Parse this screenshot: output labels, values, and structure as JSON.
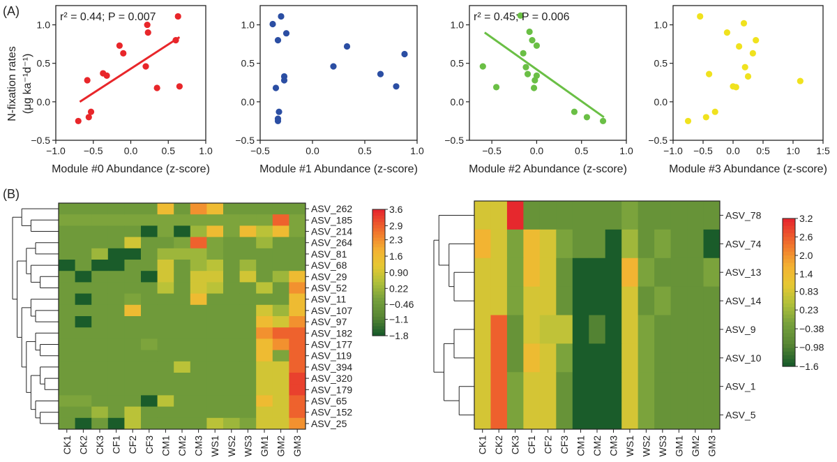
{
  "panel_a_label": "(A)",
  "panel_b_label": "(B)",
  "ylabel_line1": "N-fixation rates",
  "ylabel_line2": "(μg ka⁻¹d⁻¹)",
  "chart_data": [
    {
      "type": "scatter",
      "name": "module0",
      "xlabel": "Module #0 Abundance (z-score)",
      "annotation": "r² = 0.44; P = 0.007",
      "color": "#e8262a",
      "xlim": [
        -1.0,
        1.0
      ],
      "ylim": [
        -0.5,
        1.25
      ],
      "xticks": [
        -1.0,
        -0.5,
        0.0,
        0.5,
        1.0
      ],
      "xtick_labels": [
        "−1.0",
        "−0.5",
        "0.0",
        "0.5",
        "1.0"
      ],
      "yticks": [
        -0.5,
        0.0,
        0.5,
        1.0
      ],
      "ytick_labels": [
        "−0.5",
        "0.0",
        "0.5",
        "1.0"
      ],
      "fit": [
        [
          -0.68,
          0.0
        ],
        [
          0.65,
          0.84
        ]
      ],
      "points": [
        [
          -0.7,
          -0.25
        ],
        [
          -0.56,
          -0.2
        ],
        [
          -0.53,
          -0.13
        ],
        [
          -0.58,
          0.28
        ],
        [
          -0.37,
          0.37
        ],
        [
          -0.32,
          0.34
        ],
        [
          -0.15,
          0.73
        ],
        [
          -0.1,
          0.63
        ],
        [
          0.2,
          0.46
        ],
        [
          0.23,
          0.9
        ],
        [
          0.22,
          1.0
        ],
        [
          0.35,
          0.18
        ],
        [
          0.6,
          0.8
        ],
        [
          0.63,
          1.11
        ],
        [
          0.65,
          0.2
        ]
      ]
    },
    {
      "type": "scatter",
      "name": "module1",
      "xlabel": "Module #1 Abundance (z-score)",
      "annotation": "",
      "color": "#2b4ea3",
      "xlim": [
        -0.5,
        1.0
      ],
      "ylim": [
        -0.5,
        1.25
      ],
      "xticks": [
        -0.5,
        0.0,
        0.5,
        1.0
      ],
      "xtick_labels": [
        "−0.5",
        "0.0",
        "0.5",
        "1.0"
      ],
      "yticks": [
        -0.5,
        0.0,
        0.5,
        1.0
      ],
      "ytick_labels": [
        "−0.5",
        "0.0",
        "0.5",
        "1.0"
      ],
      "fit": null,
      "points": [
        [
          -0.38,
          1.01
        ],
        [
          -0.3,
          1.11
        ],
        [
          -0.25,
          0.89
        ],
        [
          -0.33,
          0.8
        ],
        [
          -0.27,
          0.33
        ],
        [
          -0.27,
          0.28
        ],
        [
          -0.35,
          0.18
        ],
        [
          -0.32,
          -0.13
        ],
        [
          -0.33,
          -0.22
        ],
        [
          -0.33,
          -0.25
        ],
        [
          0.2,
          0.46
        ],
        [
          0.33,
          0.72
        ],
        [
          0.65,
          0.36
        ],
        [
          0.8,
          0.2
        ],
        [
          0.88,
          0.62
        ]
      ]
    },
    {
      "type": "scatter",
      "name": "module2",
      "xlabel": "Module #2 Abundance (z-score)",
      "annotation": "r² = 0.45; P = 0.006",
      "color": "#6abf45",
      "xlim": [
        -0.75,
        1.0
      ],
      "ylim": [
        -0.5,
        1.25
      ],
      "xticks": [
        -0.5,
        0.0,
        0.5,
        1.0
      ],
      "xtick_labels": [
        "−0.5",
        "0.0",
        "0.5",
        "1.0"
      ],
      "yticks": [
        -0.5,
        0.0,
        0.5,
        1.0
      ],
      "ytick_labels": [
        "−0.5",
        "0.0",
        "0.5",
        "1.0"
      ],
      "fit": [
        [
          -0.58,
          0.9
        ],
        [
          0.75,
          -0.2
        ]
      ],
      "points": [
        [
          -0.18,
          1.12
        ],
        [
          -0.08,
          0.91
        ],
        [
          -0.15,
          0.63
        ],
        [
          -0.05,
          0.8
        ],
        [
          0.0,
          0.73
        ],
        [
          -0.6,
          0.46
        ],
        [
          -0.1,
          0.36
        ],
        [
          0.0,
          0.34
        ],
        [
          -0.02,
          0.28
        ],
        [
          -0.03,
          0.18
        ],
        [
          -0.45,
          0.19
        ],
        [
          0.42,
          -0.13
        ],
        [
          0.56,
          -0.2
        ],
        [
          0.74,
          -0.25
        ],
        [
          -0.12,
          0.45
        ]
      ]
    },
    {
      "type": "scatter",
      "name": "module3",
      "xlabel": "Module #3 Abundance (z-score)",
      "annotation": "",
      "color": "#f0e21e",
      "xlim": [
        -1.0,
        1.5
      ],
      "ylim": [
        -0.5,
        1.25
      ],
      "xticks": [
        -1.0,
        -0.5,
        0.0,
        0.5,
        1.0,
        1.5
      ],
      "xtick_labels": [
        "−1.0",
        "−0.5",
        "0.0",
        "0:5",
        "1:0",
        "1:5"
      ],
      "yticks": [
        -0.5,
        0.0,
        0.5,
        1.0
      ],
      "ytick_labels": [
        "−0.5",
        "0.0",
        "0.5",
        "1.0"
      ],
      "fit": null,
      "points": [
        [
          -0.55,
          1.11
        ],
        [
          -0.1,
          0.9
        ],
        [
          0.18,
          1.02
        ],
        [
          0.38,
          0.8
        ],
        [
          0.1,
          0.72
        ],
        [
          0.33,
          0.63
        ],
        [
          0.2,
          0.45
        ],
        [
          -0.4,
          0.36
        ],
        [
          0.25,
          0.33
        ],
        [
          0.0,
          0.2
        ],
        [
          0.05,
          0.19
        ],
        [
          -0.3,
          -0.13
        ],
        [
          -0.45,
          -0.2
        ],
        [
          -0.75,
          -0.25
        ],
        [
          1.12,
          0.27
        ]
      ]
    },
    {
      "type": "heatmap",
      "name": "heatmap_left",
      "columns": [
        "CK1",
        "CK2",
        "CK3",
        "CF1",
        "CF2",
        "CF3",
        "CM1",
        "CM2",
        "CM3",
        "WS1",
        "WS2",
        "WS3",
        "GM1",
        "GM2",
        "GM3"
      ],
      "rows": [
        "ASV_262",
        "ASV_185",
        "ASV_214",
        "ASV_264",
        "ASV_81",
        "ASV_68",
        "ASV_29",
        "ASV_52",
        "ASV_11",
        "ASV_107",
        "ASV_97",
        "ASV_182",
        "ASV_177",
        "ASV_119",
        "ASV_394",
        "ASV_320",
        "ASV_179",
        "ASV_65",
        "ASV_152",
        "ASV_25"
      ],
      "values": [
        [
          -0.46,
          -0.46,
          -0.46,
          -0.46,
          -0.46,
          -0.46,
          1.6,
          -0.46,
          2.3,
          1.6,
          -0.46,
          -0.46,
          -0.46,
          -0.46,
          -0.46
        ],
        [
          -0.2,
          -0.2,
          -0.2,
          -0.2,
          -0.2,
          -0.2,
          -0.2,
          -0.2,
          -0.2,
          -0.2,
          -0.2,
          -0.2,
          -0.2,
          2.9,
          -0.2
        ],
        [
          -0.46,
          -0.46,
          -0.46,
          -0.46,
          -0.46,
          -1.8,
          -0.2,
          -1.8,
          0.22,
          1.6,
          -0.2,
          1.6,
          0.6,
          1.6,
          -0.2
        ],
        [
          -0.46,
          -0.46,
          -0.46,
          -0.46,
          0.9,
          -0.46,
          -0.46,
          -0.2,
          2.9,
          -0.2,
          -0.46,
          -0.46,
          0.22,
          -0.46,
          -0.46
        ],
        [
          -0.46,
          -0.46,
          0.22,
          -1.8,
          -1.8,
          -0.46,
          0.22,
          0.22,
          0.22,
          -0.2,
          -0.46,
          -0.46,
          -0.46,
          -0.46,
          -0.46
        ],
        [
          -1.8,
          -0.46,
          -1.8,
          -1.8,
          -0.46,
          -0.46,
          0.9,
          -0.46,
          0.22,
          0.6,
          -0.46,
          0.22,
          -0.46,
          -0.46,
          -0.46
        ],
        [
          -0.46,
          -1.8,
          -0.46,
          -0.46,
          -0.46,
          -1.8,
          0.9,
          -0.46,
          0.9,
          0.9,
          -0.46,
          0.9,
          -0.46,
          0.22,
          1.6
        ],
        [
          -0.46,
          -0.46,
          -0.46,
          -0.46,
          -0.46,
          -0.46,
          0.6,
          -0.46,
          0.9,
          0.6,
          -0.46,
          -0.46,
          0.6,
          -0.46,
          2.3
        ],
        [
          -0.46,
          -1.8,
          -0.46,
          -0.46,
          -0.2,
          -0.46,
          -0.46,
          -0.46,
          1.6,
          -0.46,
          -0.46,
          -0.46,
          -0.46,
          -0.46,
          1.6
        ],
        [
          -0.46,
          -0.46,
          -0.46,
          -0.46,
          1.6,
          -0.46,
          -0.46,
          -0.46,
          -0.46,
          -0.46,
          -0.46,
          -0.46,
          0.9,
          0.22,
          1.6
        ],
        [
          -0.46,
          -1.8,
          -0.46,
          -0.46,
          -0.46,
          -0.46,
          -0.46,
          -0.46,
          -0.46,
          -0.46,
          -0.46,
          -0.46,
          1.6,
          0.9,
          2.3
        ],
        [
          -0.46,
          -0.46,
          -0.46,
          -0.46,
          -0.46,
          -0.46,
          -0.46,
          -0.46,
          -0.46,
          -0.46,
          -0.46,
          -0.46,
          2.3,
          2.9,
          2.9
        ],
        [
          -0.46,
          -0.46,
          -0.46,
          -0.46,
          -0.46,
          -0.2,
          -0.46,
          -0.46,
          -0.46,
          -0.46,
          -0.46,
          -0.46,
          1.6,
          2.3,
          2.9
        ],
        [
          -0.46,
          -0.46,
          -0.46,
          -0.46,
          -0.46,
          -0.46,
          -0.46,
          -0.46,
          -0.46,
          -0.46,
          -0.46,
          -0.46,
          1.6,
          -0.2,
          2.9
        ],
        [
          -0.46,
          -0.46,
          -0.46,
          -0.46,
          -0.46,
          -0.46,
          -0.46,
          0.6,
          -0.46,
          -0.46,
          -0.46,
          -0.46,
          0.9,
          0.9,
          2.9
        ],
        [
          -0.46,
          -0.46,
          -0.46,
          -0.46,
          -0.46,
          -0.46,
          -0.46,
          -0.46,
          -0.46,
          -0.46,
          -0.46,
          -0.46,
          0.9,
          0.9,
          3.3
        ],
        [
          -0.46,
          -0.46,
          -0.46,
          -0.46,
          -0.46,
          -0.46,
          -0.46,
          -0.46,
          -0.46,
          -0.46,
          -0.46,
          -0.46,
          0.9,
          0.9,
          3.3
        ],
        [
          -0.2,
          -0.2,
          -0.46,
          -0.46,
          -0.46,
          -1.8,
          0.6,
          -0.46,
          -0.46,
          -0.46,
          -0.46,
          -0.46,
          1.6,
          0.9,
          2.9
        ],
        [
          -0.46,
          -0.46,
          0.22,
          -0.46,
          0.6,
          -0.46,
          -0.46,
          -0.46,
          -0.46,
          -0.46,
          -0.46,
          -0.46,
          0.9,
          0.9,
          2.9
        ],
        [
          -0.46,
          -1.8,
          -0.46,
          -1.8,
          0.6,
          -0.46,
          -0.46,
          -0.46,
          -0.46,
          0.6,
          0.22,
          -0.2,
          0.9,
          0.9,
          2.3
        ]
      ],
      "legend": {
        "ticks": [
          3.6,
          2.9,
          2.3,
          1.6,
          0.9,
          0.22,
          -0.46,
          -1.1,
          -1.8
        ],
        "labels": [
          "3.6",
          "2.9",
          "2.3",
          "1.6",
          "0.90",
          "0.22",
          "−0.46",
          "−1.1",
          "−1.8"
        ]
      }
    },
    {
      "type": "heatmap",
      "name": "heatmap_right",
      "columns": [
        "CK1",
        "CK2",
        "CK3",
        "CF1",
        "CF2",
        "CF3",
        "CM1",
        "CM2",
        "CM3",
        "WS1",
        "WS2",
        "WS3",
        "GM1",
        "GM2",
        "GM3"
      ],
      "rows": [
        "ASV_78",
        "ASV_74",
        "ASV_13",
        "ASV_14",
        "ASV_9",
        "ASV_10",
        "ASV_1",
        "ASV_5"
      ],
      "values": [
        [
          0.83,
          0.83,
          3.2,
          -0.6,
          -0.6,
          -0.6,
          -0.6,
          -0.6,
          -0.6,
          -0.2,
          -0.6,
          -0.6,
          -0.6,
          -0.6,
          -0.6
        ],
        [
          1.6,
          0.83,
          -0.2,
          1.4,
          0.83,
          -0.2,
          -0.6,
          -0.6,
          -1.6,
          0.23,
          -0.6,
          -0.2,
          -0.6,
          -0.6,
          -1.6
        ],
        [
          0.83,
          0.83,
          -0.2,
          1.4,
          0.83,
          -0.6,
          -1.6,
          -1.6,
          -1.6,
          1.6,
          -0.2,
          -0.6,
          -0.6,
          -0.6,
          -0.2
        ],
        [
          0.83,
          0.83,
          -0.2,
          0.83,
          0.83,
          -0.6,
          -1.6,
          -1.6,
          -1.6,
          0.83,
          -0.6,
          -0.2,
          -0.6,
          -0.6,
          -0.6
        ],
        [
          0.83,
          2.6,
          -0.6,
          0.83,
          0.6,
          0.6,
          -1.6,
          -0.98,
          -1.6,
          0.83,
          -0.2,
          -0.6,
          -0.6,
          -0.6,
          -0.6
        ],
        [
          0.83,
          2.6,
          -0.6,
          1.4,
          0.83,
          -0.2,
          -1.6,
          -1.6,
          -1.6,
          0.83,
          -0.2,
          -0.6,
          -0.6,
          -0.6,
          -0.6
        ],
        [
          0.83,
          2.6,
          -0.2,
          0.83,
          0.83,
          -0.6,
          -1.6,
          -1.6,
          -1.6,
          0.83,
          -0.2,
          -0.6,
          -0.6,
          -0.6,
          -0.6
        ],
        [
          0.83,
          2.6,
          -0.2,
          0.83,
          0.83,
          -0.6,
          -1.6,
          -1.6,
          -1.6,
          0.83,
          -0.2,
          -0.6,
          -0.6,
          -0.6,
          -0.6
        ]
      ],
      "legend": {
        "ticks": [
          3.2,
          2.6,
          2.0,
          1.4,
          0.83,
          0.23,
          -0.38,
          -0.98,
          -1.6
        ],
        "labels": [
          "3.2",
          "2.6",
          "2.0",
          "1.4",
          "0.83",
          "0.23",
          "−0.38",
          "−0.98",
          "−1.6"
        ]
      }
    }
  ]
}
